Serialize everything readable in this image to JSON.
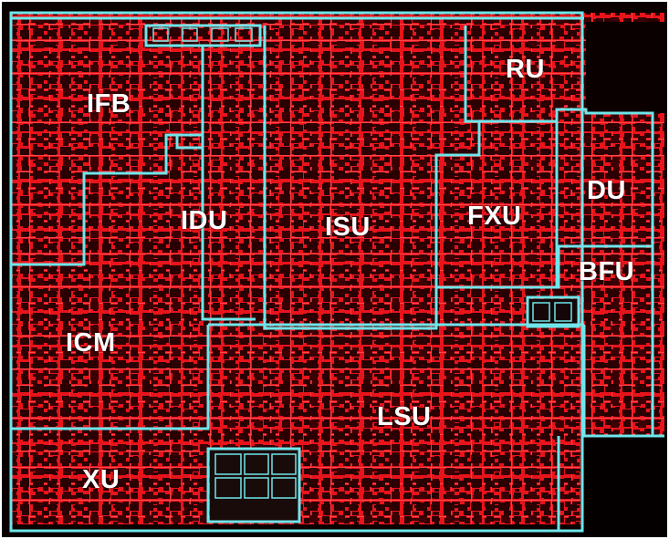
{
  "colors": {
    "die_background": "#0a0000",
    "logic_red": "#e8141b",
    "logic_dark": "#2a0002",
    "boundary_cyan": "#6fe6ea",
    "label_white": "#ffffff",
    "page_background": "#ffffff"
  },
  "units": [
    {
      "id": "ifb",
      "label": "IFB"
    },
    {
      "id": "idu",
      "label": "IDU"
    },
    {
      "id": "isu",
      "label": "ISU"
    },
    {
      "id": "fxu",
      "label": "FXU"
    },
    {
      "id": "ru",
      "label": "RU"
    },
    {
      "id": "du",
      "label": "DU"
    },
    {
      "id": "bfu",
      "label": "BFU"
    },
    {
      "id": "icm",
      "label": "ICM"
    },
    {
      "id": "lsu",
      "label": "LSU"
    },
    {
      "id": "xu",
      "label": "XU"
    }
  ]
}
